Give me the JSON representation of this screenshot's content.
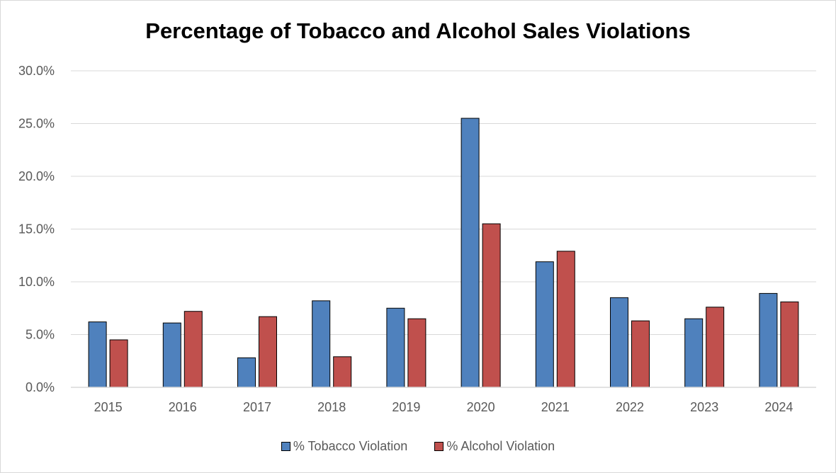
{
  "chart_data": {
    "type": "bar",
    "title": "Percentage of Tobacco and Alcohol Sales Violations",
    "xlabel": "",
    "ylabel": "",
    "categories": [
      "2015",
      "2016",
      "2017",
      "2018",
      "2019",
      "2020",
      "2021",
      "2022",
      "2023",
      "2024"
    ],
    "ylim": [
      0,
      30
    ],
    "yticks": [
      0,
      5,
      10,
      15,
      20,
      25,
      30
    ],
    "ytick_labels": [
      "0.0%",
      "5.0%",
      "10.0%",
      "15.0%",
      "20.0%",
      "25.0%",
      "30.0%"
    ],
    "grid": true,
    "legend_position": "bottom",
    "series": [
      {
        "name": "% Tobacco Violation",
        "color": "#4f81bd",
        "values": [
          6.2,
          6.1,
          2.8,
          8.2,
          7.5,
          25.5,
          11.9,
          8.5,
          6.5,
          8.9
        ]
      },
      {
        "name": "% Alcohol Violation",
        "color": "#c0504d",
        "values": [
          4.5,
          7.2,
          6.7,
          2.9,
          6.5,
          15.5,
          12.9,
          6.3,
          7.6,
          8.1
        ]
      }
    ]
  }
}
